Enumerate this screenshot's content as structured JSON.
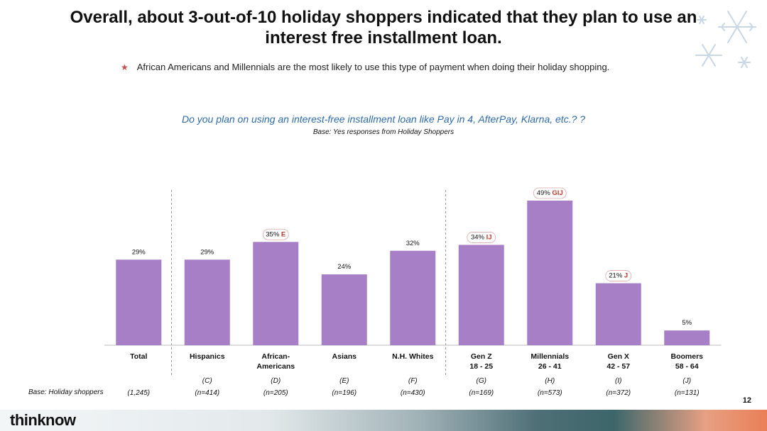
{
  "title_lines": [
    "Overall, about 3-out-of-10 holiday shoppers indicated that they plan to use an",
    "interest free installment loan."
  ],
  "bullet": "African Americans and Millennials are the most likely to use this type of payment when doing their holiday shopping.",
  "question": "Do you plan on using an interest-free installment loan like Pay in 4, AfterPay, Klarna, etc.? ?",
  "base_question": "Base:  Yes responses from Holiday Shoppers",
  "bottom_base_label": "Base: Holiday shoppers",
  "page_number": "12",
  "brand": "thinknow",
  "colors": {
    "bar": "#a77fc7",
    "sig": "#c0392b",
    "question": "#2e6aa7"
  },
  "chart_data": {
    "type": "bar",
    "title": "Do you plan on using an interest-free installment loan like Pay in 4, AfterPay, Klarna, etc.?",
    "ylabel": "",
    "ylim": [
      0,
      55
    ],
    "unit": "%",
    "categories": [
      {
        "label": [
          "Total"
        ],
        "code": "",
        "n": "(1,245)",
        "value": 29,
        "sig": "",
        "highlight": false
      },
      {
        "label": [
          "Hispanics"
        ],
        "code": "(C)",
        "n": "(n=414)",
        "value": 29,
        "sig": "",
        "highlight": false
      },
      {
        "label": [
          "African-",
          "Americans"
        ],
        "code": "(D)",
        "n": "(n=205)",
        "value": 35,
        "sig": "E",
        "highlight": true
      },
      {
        "label": [
          "Asians"
        ],
        "code": "(E)",
        "n": "(n=196)",
        "value": 24,
        "sig": "",
        "highlight": false
      },
      {
        "label": [
          "N.H. Whites"
        ],
        "code": "(F)",
        "n": "(n=430)",
        "value": 32,
        "sig": "",
        "highlight": false
      },
      {
        "label": [
          "Gen Z",
          "18 - 25"
        ],
        "code": "(G)",
        "n": "(n=169)",
        "value": 34,
        "sig": "IJ",
        "highlight": true
      },
      {
        "label": [
          "Millennials",
          "26 - 41"
        ],
        "code": "(H)",
        "n": "(n=573)",
        "value": 49,
        "sig": "GIJ",
        "highlight": true
      },
      {
        "label": [
          "Gen X",
          "42 - 57"
        ],
        "code": "(I)",
        "n": "(n=372)",
        "value": 21,
        "sig": "J",
        "highlight": true
      },
      {
        "label": [
          "Boomers",
          "58 - 64"
        ],
        "code": "(J)",
        "n": "(n=131)",
        "value": 5,
        "sig": "",
        "highlight": false
      }
    ]
  }
}
